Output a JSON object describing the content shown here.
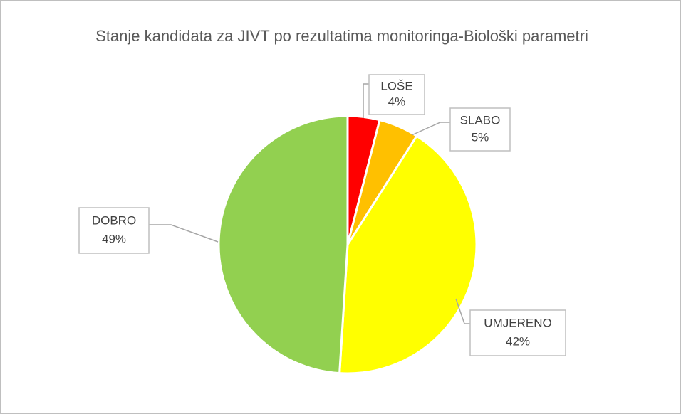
{
  "chart_data": {
    "type": "pie",
    "title": "Stanje kandidata za JIVT po rezultatima monitoringa-Biološki parametri",
    "categories": [
      "LOŠE",
      "SLABO",
      "UMJERENO",
      "DOBRO"
    ],
    "values": [
      4,
      5,
      42,
      49
    ],
    "value_labels": [
      "4%",
      "5%",
      "42%",
      "49%"
    ],
    "colors": [
      "#ff0000",
      "#ffc000",
      "#ffff00",
      "#92d050"
    ]
  }
}
